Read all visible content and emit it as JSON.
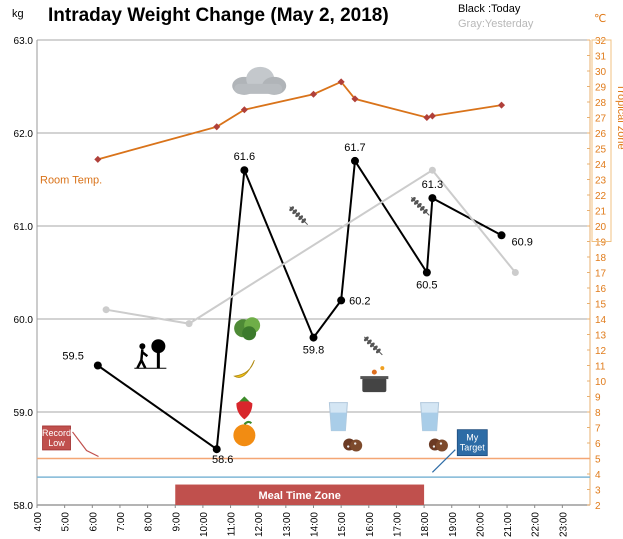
{
  "chart_data": {
    "type": "line",
    "title": "Intraday Weight Change (May 2, 2018)",
    "y_unit": "kg",
    "y2_unit": "℃",
    "ylim": [
      58.0,
      63.0
    ],
    "y_ticks": [
      "63.0",
      "62.0",
      "61.0",
      "60.0",
      "59.0",
      "58.0"
    ],
    "y2lim": [
      2,
      32
    ],
    "y2_ticks": [
      "32",
      "31",
      "30",
      "29",
      "28",
      "27",
      "26",
      "25",
      "24",
      "23",
      "22",
      "21",
      "20",
      "19",
      "18",
      "17",
      "16",
      "15",
      "14",
      "13",
      "12",
      "11",
      "10",
      "9",
      "8",
      "7",
      "6",
      "5",
      "4",
      "3",
      "2"
    ],
    "xlim": [
      4,
      24
    ],
    "x_ticks": [
      "4:00",
      "5:00",
      "6:00",
      "7:00",
      "8:00",
      "9:00",
      "10:00",
      "11:00",
      "12:00",
      "13:00",
      "14:00",
      "15:00",
      "16:00",
      "17:00",
      "18:00",
      "19:00",
      "20:00",
      "21:00",
      "22:00",
      "23:00"
    ],
    "legend": {
      "today": "Black :Today",
      "yesterday": "Gray:Yesterday"
    },
    "series": [
      {
        "name": "Today",
        "color": "#000000",
        "points": [
          {
            "x": 6.2,
            "y": 59.5,
            "label": "59.5"
          },
          {
            "x": 10.5,
            "y": 58.6,
            "label": "58.6"
          },
          {
            "x": 11.5,
            "y": 61.6,
            "label": "61.6"
          },
          {
            "x": 14.0,
            "y": 59.8,
            "label": "59.8"
          },
          {
            "x": 15.0,
            "y": 60.2,
            "label": "60.2"
          },
          {
            "x": 15.5,
            "y": 61.7,
            "label": "61.7"
          },
          {
            "x": 18.1,
            "y": 60.5,
            "label": "60.5"
          },
          {
            "x": 18.3,
            "y": 61.3,
            "label": "61.3"
          },
          {
            "x": 20.8,
            "y": 60.9,
            "label": "60.9"
          }
        ]
      },
      {
        "name": "Yesterday",
        "color": "#cccccc",
        "points": [
          {
            "x": 6.5,
            "y": 60.1
          },
          {
            "x": 9.5,
            "y": 59.95
          },
          {
            "x": 18.3,
            "y": 61.6
          },
          {
            "x": 21.3,
            "y": 60.5
          }
        ]
      },
      {
        "name": "Room Temp.",
        "color": "#d9731a",
        "axis": "y2",
        "points": [
          {
            "x": 6.2,
            "y": 24.3
          },
          {
            "x": 10.5,
            "y": 26.4
          },
          {
            "x": 11.5,
            "y": 27.5
          },
          {
            "x": 14.0,
            "y": 28.5
          },
          {
            "x": 15.0,
            "y": 29.3
          },
          {
            "x": 15.5,
            "y": 28.2
          },
          {
            "x": 18.1,
            "y": 27.0
          },
          {
            "x": 18.3,
            "y": 27.1
          },
          {
            "x": 20.8,
            "y": 27.8
          }
        ]
      }
    ],
    "reference_lines": [
      {
        "name": "Record Low",
        "y": 58.5,
        "color": "#f4a674"
      },
      {
        "name": "My Target",
        "y": 58.3,
        "color": "#7fb7d6"
      }
    ],
    "annotations": {
      "room_temp_label": "Room Temp.",
      "tropical_zone_label": "Tropical zone",
      "tropical_zone_threshold_c": 19,
      "record_low_label": "Record Low",
      "my_target_label": "My Target",
      "meal_time_zone_label": "Meal Time Zone",
      "meal_time_zone_range": [
        9.0,
        18.0
      ]
    },
    "grid": true,
    "icons": [
      {
        "name": "cloud-icon",
        "x": 12.0,
        "y": 62.55
      },
      {
        "name": "wheat-icon",
        "x": 13.5,
        "y": 61.1
      },
      {
        "name": "wheat-icon",
        "x": 17.9,
        "y": 61.2
      },
      {
        "name": "walker-tree-icon",
        "x": 8.1,
        "y": 59.6
      },
      {
        "name": "lettuce-icon",
        "x": 11.6,
        "y": 59.9
      },
      {
        "name": "banana-icon",
        "x": 11.5,
        "y": 59.45
      },
      {
        "name": "strawberry-icon",
        "x": 11.5,
        "y": 59.05
      },
      {
        "name": "orange-icon",
        "x": 11.5,
        "y": 58.75
      },
      {
        "name": "wheat-icon",
        "x": 16.2,
        "y": 59.7
      },
      {
        "name": "cooking-pot-icon",
        "x": 16.2,
        "y": 59.3
      },
      {
        "name": "water-glass-icon",
        "x": 14.9,
        "y": 58.95
      },
      {
        "name": "cookies-icon",
        "x": 15.4,
        "y": 58.65
      },
      {
        "name": "water-glass-icon",
        "x": 18.2,
        "y": 58.95
      },
      {
        "name": "cookies-icon",
        "x": 18.5,
        "y": 58.65
      }
    ]
  }
}
